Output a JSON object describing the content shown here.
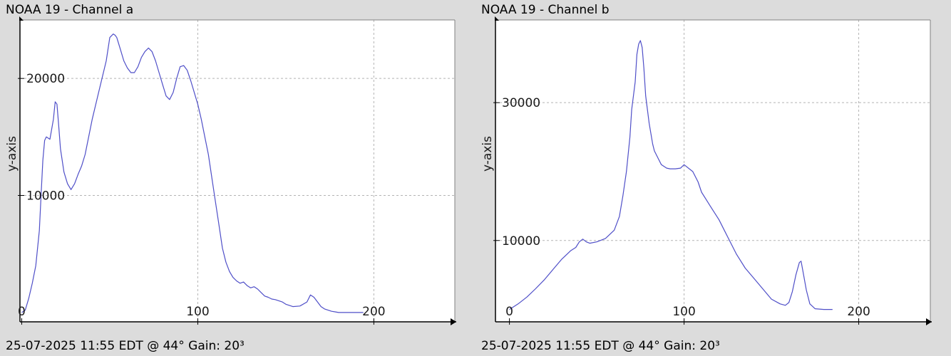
{
  "chart_data": [
    {
      "type": "line",
      "title": "NOAA 19 - Channel a",
      "footer": "25-07-2025 11:55 EDT @ 44° Gain: 20³",
      "xlabel": "",
      "ylabel": "y-axis",
      "xlim": [
        -1,
        246
      ],
      "ylim": [
        -800,
        25000
      ],
      "x_ticks": [
        0,
        100,
        200
      ],
      "x_tick_labels": [
        "0",
        "100",
        "200"
      ],
      "y_ticks": [
        10000,
        20000
      ],
      "y_tick_labels": [
        "10000",
        "20000"
      ],
      "x_grid": [
        100,
        200
      ],
      "y_grid": [
        10000,
        20000
      ],
      "line_color": "#4f4fc8",
      "series": [
        {
          "x": [
            0,
            2,
            4,
            6,
            8,
            10,
            11,
            12,
            13,
            14,
            16,
            18,
            19,
            20,
            21,
            22,
            24,
            26,
            28,
            30,
            32,
            34,
            36,
            40,
            44,
            48,
            50,
            52,
            53,
            54,
            56,
            58,
            60,
            62,
            64,
            66,
            68,
            70,
            72,
            74,
            76,
            78,
            80,
            82,
            84,
            86,
            88,
            90,
            92,
            94,
            96,
            98,
            100,
            102,
            104,
            106,
            108,
            110,
            112,
            114,
            116,
            118,
            120,
            122,
            124,
            126,
            128,
            130,
            132,
            134,
            136,
            138,
            140,
            142,
            144,
            146,
            148,
            150,
            154,
            158,
            162,
            164,
            166,
            168,
            170,
            172,
            174,
            176,
            178,
            180,
            182,
            186,
            190,
            194
          ],
          "y": [
            0,
            200,
            1200,
            2500,
            4000,
            7000,
            10000,
            13000,
            14700,
            15000,
            14800,
            16500,
            18000,
            17800,
            16000,
            14000,
            12000,
            11000,
            10500,
            11000,
            11800,
            12500,
            13500,
            16500,
            19000,
            21500,
            23500,
            23800,
            23700,
            23500,
            22500,
            21500,
            20900,
            20500,
            20500,
            21000,
            21800,
            22300,
            22600,
            22300,
            21500,
            20500,
            19500,
            18500,
            18200,
            18800,
            20000,
            21000,
            21100,
            20700,
            19800,
            18800,
            17800,
            16500,
            15000,
            13500,
            11500,
            9500,
            7500,
            5500,
            4300,
            3500,
            3000,
            2700,
            2500,
            2600,
            2300,
            2100,
            2200,
            2000,
            1700,
            1400,
            1300,
            1150,
            1100,
            1000,
            900,
            700,
            500,
            550,
            900,
            1500,
            1300,
            900,
            500,
            300,
            200,
            100,
            50,
            0,
            0,
            0,
            0,
            0
          ]
        }
      ]
    },
    {
      "type": "line",
      "title": "NOAA 19 - Channel b",
      "footer": "25-07-2025 11:55 EDT @ 44° Gain: 20³",
      "xlabel": "",
      "ylabel": "y-axis",
      "xlim": [
        -8,
        241
      ],
      "ylim": [
        -1800,
        42000
      ],
      "x_ticks": [
        0,
        100,
        200
      ],
      "x_tick_labels": [
        "0",
        "100",
        "200"
      ],
      "y_ticks": [
        10000,
        30000
      ],
      "y_tick_labels": [
        "10000",
        "30000"
      ],
      "x_grid": [
        100,
        200
      ],
      "y_grid": [
        10000,
        30000
      ],
      "line_color": "#4f4fc8",
      "series": [
        {
          "x": [
            0,
            5,
            10,
            15,
            20,
            25,
            30,
            35,
            38,
            40,
            42,
            44,
            46,
            50,
            55,
            60,
            63,
            65,
            67,
            69,
            70,
            72,
            73,
            74,
            75,
            76,
            77,
            78,
            80,
            82,
            83,
            85,
            87,
            90,
            92,
            95,
            98,
            100,
            105,
            108,
            110,
            113,
            115,
            120,
            125,
            130,
            135,
            140,
            145,
            150,
            155,
            158,
            160,
            162,
            164,
            166,
            167,
            168,
            170,
            172,
            175,
            180,
            185
          ],
          "y": [
            0,
            800,
            1800,
            3000,
            4300,
            5800,
            7300,
            8500,
            9000,
            9800,
            10200,
            9800,
            9600,
            9800,
            10300,
            11500,
            13500,
            16500,
            20000,
            25000,
            29000,
            33000,
            37000,
            38500,
            39000,
            38000,
            35000,
            31000,
            27000,
            24000,
            23000,
            22000,
            21000,
            20500,
            20400,
            20400,
            20500,
            21000,
            20000,
            18500,
            17000,
            15800,
            15000,
            13000,
            10500,
            8000,
            6000,
            4500,
            3000,
            1500,
            800,
            600,
            1000,
            2600,
            5000,
            6800,
            7000,
            5600,
            2800,
            800,
            100,
            0,
            0
          ]
        }
      ]
    }
  ]
}
